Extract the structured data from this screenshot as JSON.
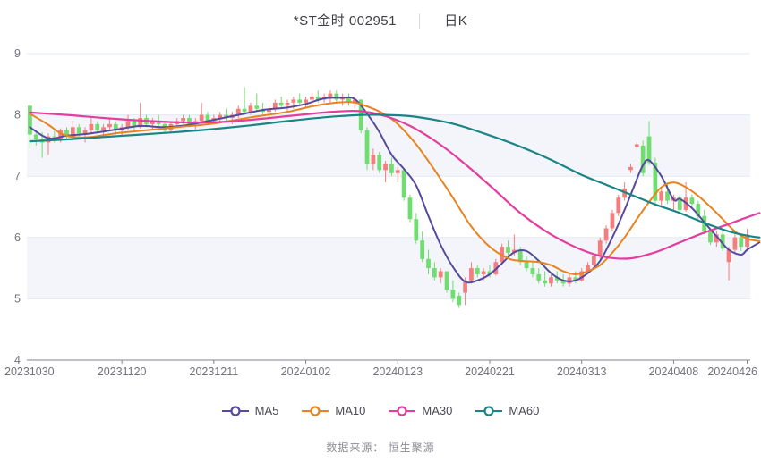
{
  "header": {
    "title": "*ST金时 002951",
    "separator": "│",
    "ktype": "日K"
  },
  "source": {
    "text": "数据来源： 恒生聚源"
  },
  "legend": [
    {
      "label": "MA5",
      "color": "#554A9E"
    },
    {
      "label": "MA10",
      "color": "#E8831F"
    },
    {
      "label": "MA30",
      "color": "#E23E9E"
    },
    {
      "label": "MA60",
      "color": "#1A8584"
    }
  ],
  "chart_data": {
    "type": "candlestick+line",
    "title": "*ST金时 002951 日K",
    "ylim": [
      4,
      9
    ],
    "y_ticks": [
      9,
      8,
      7,
      6,
      5,
      4
    ],
    "x_tick_labels": [
      "20231030",
      "20231120",
      "20231211",
      "20240102",
      "20240123",
      "20240221",
      "20240313",
      "20240408",
      "20240426"
    ],
    "x_tick_indices": [
      0,
      15,
      30,
      45,
      60,
      75,
      90,
      105,
      117
    ],
    "up_color": "#F57D7D",
    "down_color": "#6FDD6F",
    "band_color": "#F3F5FA",
    "grid_color": "#E3E8F2",
    "axis_color": "#85858D",
    "axis_text_color": "#73737D",
    "candles": [
      [
        8.15,
        8.18,
        7.45,
        7.68
      ],
      [
        7.68,
        7.75,
        7.5,
        7.6
      ],
      [
        7.6,
        7.72,
        7.3,
        7.55
      ],
      [
        7.55,
        7.7,
        7.35,
        7.65
      ],
      [
        7.65,
        7.75,
        7.55,
        7.6
      ],
      [
        7.6,
        7.78,
        7.55,
        7.75
      ],
      [
        7.75,
        7.8,
        7.6,
        7.65
      ],
      [
        7.65,
        7.9,
        7.6,
        7.8
      ],
      [
        7.8,
        7.85,
        7.65,
        7.7
      ],
      [
        7.7,
        7.8,
        7.55,
        7.75
      ],
      [
        7.75,
        7.95,
        7.7,
        7.85
      ],
      [
        7.85,
        7.9,
        7.7,
        7.75
      ],
      [
        7.75,
        7.85,
        7.65,
        7.8
      ],
      [
        7.8,
        7.95,
        7.75,
        7.85
      ],
      [
        7.85,
        7.9,
        7.7,
        7.75
      ],
      [
        7.75,
        7.85,
        7.65,
        7.8
      ],
      [
        7.8,
        8.0,
        7.75,
        7.9
      ],
      [
        7.9,
        7.95,
        7.75,
        7.8
      ],
      [
        7.8,
        8.2,
        7.78,
        7.95
      ],
      [
        7.95,
        8.0,
        7.8,
        7.85
      ],
      [
        7.85,
        7.95,
        7.75,
        7.9
      ],
      [
        7.9,
        8.0,
        7.8,
        7.85
      ],
      [
        7.85,
        7.9,
        7.7,
        7.75
      ],
      [
        7.75,
        7.9,
        7.7,
        7.85
      ],
      [
        7.85,
        7.95,
        7.8,
        7.9
      ],
      [
        7.9,
        8.0,
        7.85,
        7.95
      ],
      [
        7.95,
        8.0,
        7.8,
        7.85
      ],
      [
        7.85,
        7.95,
        7.75,
        7.9
      ],
      [
        7.9,
        8.2,
        7.85,
        8.0
      ],
      [
        8.0,
        8.05,
        7.85,
        7.9
      ],
      [
        7.9,
        8.0,
        7.85,
        7.95
      ],
      [
        7.95,
        8.05,
        7.9,
        8.0
      ],
      [
        8.0,
        8.1,
        7.9,
        7.95
      ],
      [
        7.95,
        8.05,
        7.85,
        8.0
      ],
      [
        8.0,
        8.15,
        7.95,
        8.1
      ],
      [
        8.1,
        8.45,
        8.0,
        8.05
      ],
      [
        8.05,
        8.2,
        8.0,
        8.15
      ],
      [
        8.15,
        8.35,
        8.05,
        8.1
      ],
      [
        8.1,
        8.2,
        8.0,
        8.05
      ],
      [
        8.05,
        8.15,
        7.95,
        8.1
      ],
      [
        8.1,
        8.25,
        8.05,
        8.2
      ],
      [
        8.2,
        8.3,
        8.1,
        8.15
      ],
      [
        8.15,
        8.25,
        8.05,
        8.2
      ],
      [
        8.2,
        8.3,
        8.1,
        8.25
      ],
      [
        8.25,
        8.35,
        8.15,
        8.2
      ],
      [
        8.2,
        8.3,
        8.1,
        8.25
      ],
      [
        8.25,
        8.35,
        8.15,
        8.3
      ],
      [
        8.3,
        8.4,
        8.2,
        8.25
      ],
      [
        8.25,
        8.35,
        8.2,
        8.3
      ],
      [
        8.3,
        8.4,
        8.2,
        8.35
      ],
      [
        8.35,
        8.4,
        8.2,
        8.25
      ],
      [
        8.25,
        8.35,
        8.15,
        8.3
      ],
      [
        8.3,
        8.35,
        8.15,
        8.2
      ],
      [
        8.2,
        8.3,
        8.1,
        8.25
      ],
      [
        8.25,
        8.25,
        7.7,
        7.75
      ],
      [
        7.75,
        7.8,
        7.1,
        7.2
      ],
      [
        7.2,
        7.45,
        7.1,
        7.35
      ],
      [
        7.35,
        7.4,
        7.05,
        7.1
      ],
      [
        7.1,
        7.25,
        6.9,
        7.2
      ],
      [
        7.2,
        7.3,
        7.0,
        7.05
      ],
      [
        7.05,
        7.15,
        6.9,
        7.1
      ],
      [
        7.1,
        7.1,
        6.6,
        6.65
      ],
      [
        6.65,
        6.7,
        6.25,
        6.3
      ],
      [
        6.3,
        6.4,
        5.9,
        5.95
      ],
      [
        5.95,
        6.1,
        5.6,
        5.65
      ],
      [
        5.65,
        5.8,
        5.4,
        5.5
      ],
      [
        5.5,
        5.6,
        5.3,
        5.35
      ],
      [
        5.35,
        5.5,
        5.25,
        5.45
      ],
      [
        5.45,
        5.45,
        5.1,
        5.15
      ],
      [
        5.15,
        5.3,
        4.95,
        5.0
      ],
      [
        5.05,
        5.1,
        4.85,
        4.9
      ],
      [
        5.1,
        5.35,
        4.9,
        5.3
      ],
      [
        5.3,
        5.6,
        5.25,
        5.5
      ],
      [
        5.5,
        5.55,
        5.35,
        5.4
      ],
      [
        5.4,
        5.5,
        5.3,
        5.45
      ],
      [
        5.45,
        5.55,
        5.35,
        5.4
      ],
      [
        5.4,
        5.65,
        5.38,
        5.6
      ],
      [
        5.6,
        5.9,
        5.55,
        5.85
      ],
      [
        5.85,
        5.95,
        5.7,
        5.75
      ],
      [
        5.75,
        6.05,
        5.7,
        5.8
      ],
      [
        5.8,
        5.85,
        5.55,
        5.6
      ],
      [
        5.6,
        5.7,
        5.45,
        5.5
      ],
      [
        5.5,
        5.6,
        5.35,
        5.4
      ],
      [
        5.4,
        5.5,
        5.25,
        5.3
      ],
      [
        5.3,
        5.45,
        5.2,
        5.25
      ],
      [
        5.25,
        5.4,
        5.2,
        5.35
      ],
      [
        5.35,
        5.45,
        5.25,
        5.3
      ],
      [
        5.3,
        5.4,
        5.2,
        5.25
      ],
      [
        5.25,
        5.4,
        5.2,
        5.35
      ],
      [
        5.35,
        5.45,
        5.25,
        5.3
      ],
      [
        5.3,
        5.5,
        5.28,
        5.45
      ],
      [
        5.45,
        5.6,
        5.4,
        5.55
      ],
      [
        5.55,
        5.75,
        5.5,
        5.7
      ],
      [
        5.7,
        6.0,
        5.65,
        5.95
      ],
      [
        5.95,
        6.2,
        5.9,
        6.15
      ],
      [
        6.15,
        6.45,
        6.1,
        6.4
      ],
      [
        6.4,
        6.7,
        6.35,
        6.65
      ],
      [
        6.65,
        6.9,
        6.6,
        6.8
      ],
      [
        7.1,
        7.2,
        7.05,
        7.15
      ],
      [
        7.48,
        7.55,
        7.45,
        7.52
      ],
      [
        7.5,
        7.58,
        7.0,
        7.05
      ],
      [
        7.65,
        7.9,
        7.18,
        7.22
      ],
      [
        7.22,
        7.3,
        6.55,
        6.6
      ],
      [
        6.6,
        6.8,
        6.5,
        6.75
      ],
      [
        6.75,
        6.9,
        6.55,
        6.6
      ],
      [
        6.6,
        6.7,
        6.45,
        6.65
      ],
      [
        6.65,
        6.7,
        6.4,
        6.45
      ],
      [
        6.45,
        6.9,
        6.42,
        6.65
      ],
      [
        6.65,
        6.7,
        6.5,
        6.55
      ],
      [
        6.55,
        6.6,
        6.3,
        6.35
      ],
      [
        6.35,
        6.45,
        6.05,
        6.1
      ],
      [
        6.1,
        6.15,
        5.88,
        5.92
      ],
      [
        5.92,
        6.1,
        5.85,
        6.05
      ],
      [
        6.05,
        6.1,
        5.78,
        5.82
      ],
      [
        5.6,
        5.85,
        5.3,
        5.8
      ],
      [
        5.8,
        6.05,
        5.75,
        6.0
      ],
      [
        6.0,
        6.05,
        5.78,
        5.85
      ],
      [
        5.85,
        6.15,
        5.78,
        6.05
      ]
    ],
    "ma_series": [
      {
        "name": "MA5",
        "color": "#554A9E",
        "width": 2,
        "points": [
          [
            0,
            7.8
          ],
          [
            3,
            7.62
          ],
          [
            6,
            7.66
          ],
          [
            10,
            7.7
          ],
          [
            14,
            7.76
          ],
          [
            18,
            7.82
          ],
          [
            22,
            7.8
          ],
          [
            26,
            7.84
          ],
          [
            30,
            7.92
          ],
          [
            34,
            8.0
          ],
          [
            38,
            8.08
          ],
          [
            42,
            8.12
          ],
          [
            45,
            8.18
          ],
          [
            48,
            8.27
          ],
          [
            51,
            8.28
          ],
          [
            53,
            8.26
          ],
          [
            55,
            8.02
          ],
          [
            57,
            7.72
          ],
          [
            59,
            7.35
          ],
          [
            61,
            7.12
          ],
          [
            63,
            6.85
          ],
          [
            65,
            6.35
          ],
          [
            67,
            5.88
          ],
          [
            69,
            5.52
          ],
          [
            71,
            5.28
          ],
          [
            73,
            5.3
          ],
          [
            75,
            5.4
          ],
          [
            77,
            5.58
          ],
          [
            79,
            5.76
          ],
          [
            81,
            5.78
          ],
          [
            83,
            5.62
          ],
          [
            85,
            5.42
          ],
          [
            87,
            5.3
          ],
          [
            89,
            5.3
          ],
          [
            91,
            5.42
          ],
          [
            93,
            5.62
          ],
          [
            95,
            6.0
          ],
          [
            97,
            6.45
          ],
          [
            99,
            6.95
          ],
          [
            100,
            7.18
          ],
          [
            101,
            7.26
          ],
          [
            103,
            7.0
          ],
          [
            105,
            6.62
          ],
          [
            106,
            6.63
          ],
          [
            108,
            6.48
          ],
          [
            110,
            6.25
          ],
          [
            112,
            6.02
          ],
          [
            114,
            5.8
          ],
          [
            116,
            5.72
          ],
          [
            117,
            5.8
          ],
          [
            119,
            5.92
          ]
        ]
      },
      {
        "name": "MA10",
        "color": "#E8831F",
        "width": 2,
        "points": [
          [
            0,
            8.02
          ],
          [
            3,
            7.84
          ],
          [
            5,
            7.7
          ],
          [
            7,
            7.64
          ],
          [
            10,
            7.64
          ],
          [
            14,
            7.7
          ],
          [
            18,
            7.74
          ],
          [
            24,
            7.8
          ],
          [
            30,
            7.86
          ],
          [
            36,
            7.96
          ],
          [
            42,
            8.05
          ],
          [
            46,
            8.14
          ],
          [
            50,
            8.2
          ],
          [
            53,
            8.2
          ],
          [
            56,
            8.1
          ],
          [
            58,
            8.0
          ],
          [
            60,
            7.85
          ],
          [
            63,
            7.52
          ],
          [
            66,
            7.1
          ],
          [
            69,
            6.65
          ],
          [
            72,
            6.18
          ],
          [
            75,
            5.85
          ],
          [
            78,
            5.66
          ],
          [
            80,
            5.62
          ],
          [
            83,
            5.6
          ],
          [
            85,
            5.55
          ],
          [
            87,
            5.45
          ],
          [
            89,
            5.4
          ],
          [
            91,
            5.45
          ],
          [
            93,
            5.55
          ],
          [
            95,
            5.75
          ],
          [
            97,
            6.0
          ],
          [
            99,
            6.3
          ],
          [
            101,
            6.58
          ],
          [
            103,
            6.82
          ],
          [
            105,
            6.9
          ],
          [
            107,
            6.82
          ],
          [
            109,
            6.68
          ],
          [
            111,
            6.5
          ],
          [
            113,
            6.3
          ],
          [
            115,
            6.1
          ],
          [
            117,
            5.98
          ],
          [
            119,
            5.94
          ]
        ]
      },
      {
        "name": "MA30",
        "color": "#E23E9E",
        "width": 2.2,
        "points": [
          [
            0,
            8.04
          ],
          [
            6,
            8.0
          ],
          [
            12,
            7.95
          ],
          [
            18,
            7.91
          ],
          [
            24,
            7.88
          ],
          [
            30,
            7.88
          ],
          [
            36,
            7.92
          ],
          [
            42,
            7.98
          ],
          [
            47,
            8.03
          ],
          [
            51,
            8.06
          ],
          [
            54,
            8.06
          ],
          [
            58,
            7.98
          ],
          [
            62,
            7.82
          ],
          [
            66,
            7.58
          ],
          [
            70,
            7.28
          ],
          [
            75,
            6.85
          ],
          [
            80,
            6.4
          ],
          [
            85,
            6.05
          ],
          [
            90,
            5.8
          ],
          [
            94,
            5.68
          ],
          [
            98,
            5.66
          ],
          [
            102,
            5.76
          ],
          [
            106,
            5.92
          ],
          [
            110,
            6.08
          ],
          [
            114,
            6.22
          ],
          [
            117,
            6.33
          ],
          [
            119,
            6.4
          ]
        ]
      },
      {
        "name": "MA60",
        "color": "#1A8584",
        "width": 2.2,
        "points": [
          [
            0,
            7.57
          ],
          [
            6,
            7.6
          ],
          [
            12,
            7.64
          ],
          [
            18,
            7.68
          ],
          [
            24,
            7.72
          ],
          [
            30,
            7.77
          ],
          [
            36,
            7.83
          ],
          [
            42,
            7.9
          ],
          [
            48,
            7.96
          ],
          [
            54,
            8.0
          ],
          [
            58,
            8.0
          ],
          [
            62,
            7.98
          ],
          [
            66,
            7.92
          ],
          [
            70,
            7.83
          ],
          [
            74,
            7.7
          ],
          [
            78,
            7.56
          ],
          [
            82,
            7.4
          ],
          [
            86,
            7.22
          ],
          [
            90,
            7.02
          ],
          [
            94,
            6.86
          ],
          [
            98,
            6.7
          ],
          [
            102,
            6.54
          ],
          [
            106,
            6.4
          ],
          [
            110,
            6.24
          ],
          [
            114,
            6.1
          ],
          [
            117,
            6.03
          ],
          [
            119,
            6.0
          ]
        ]
      }
    ]
  }
}
